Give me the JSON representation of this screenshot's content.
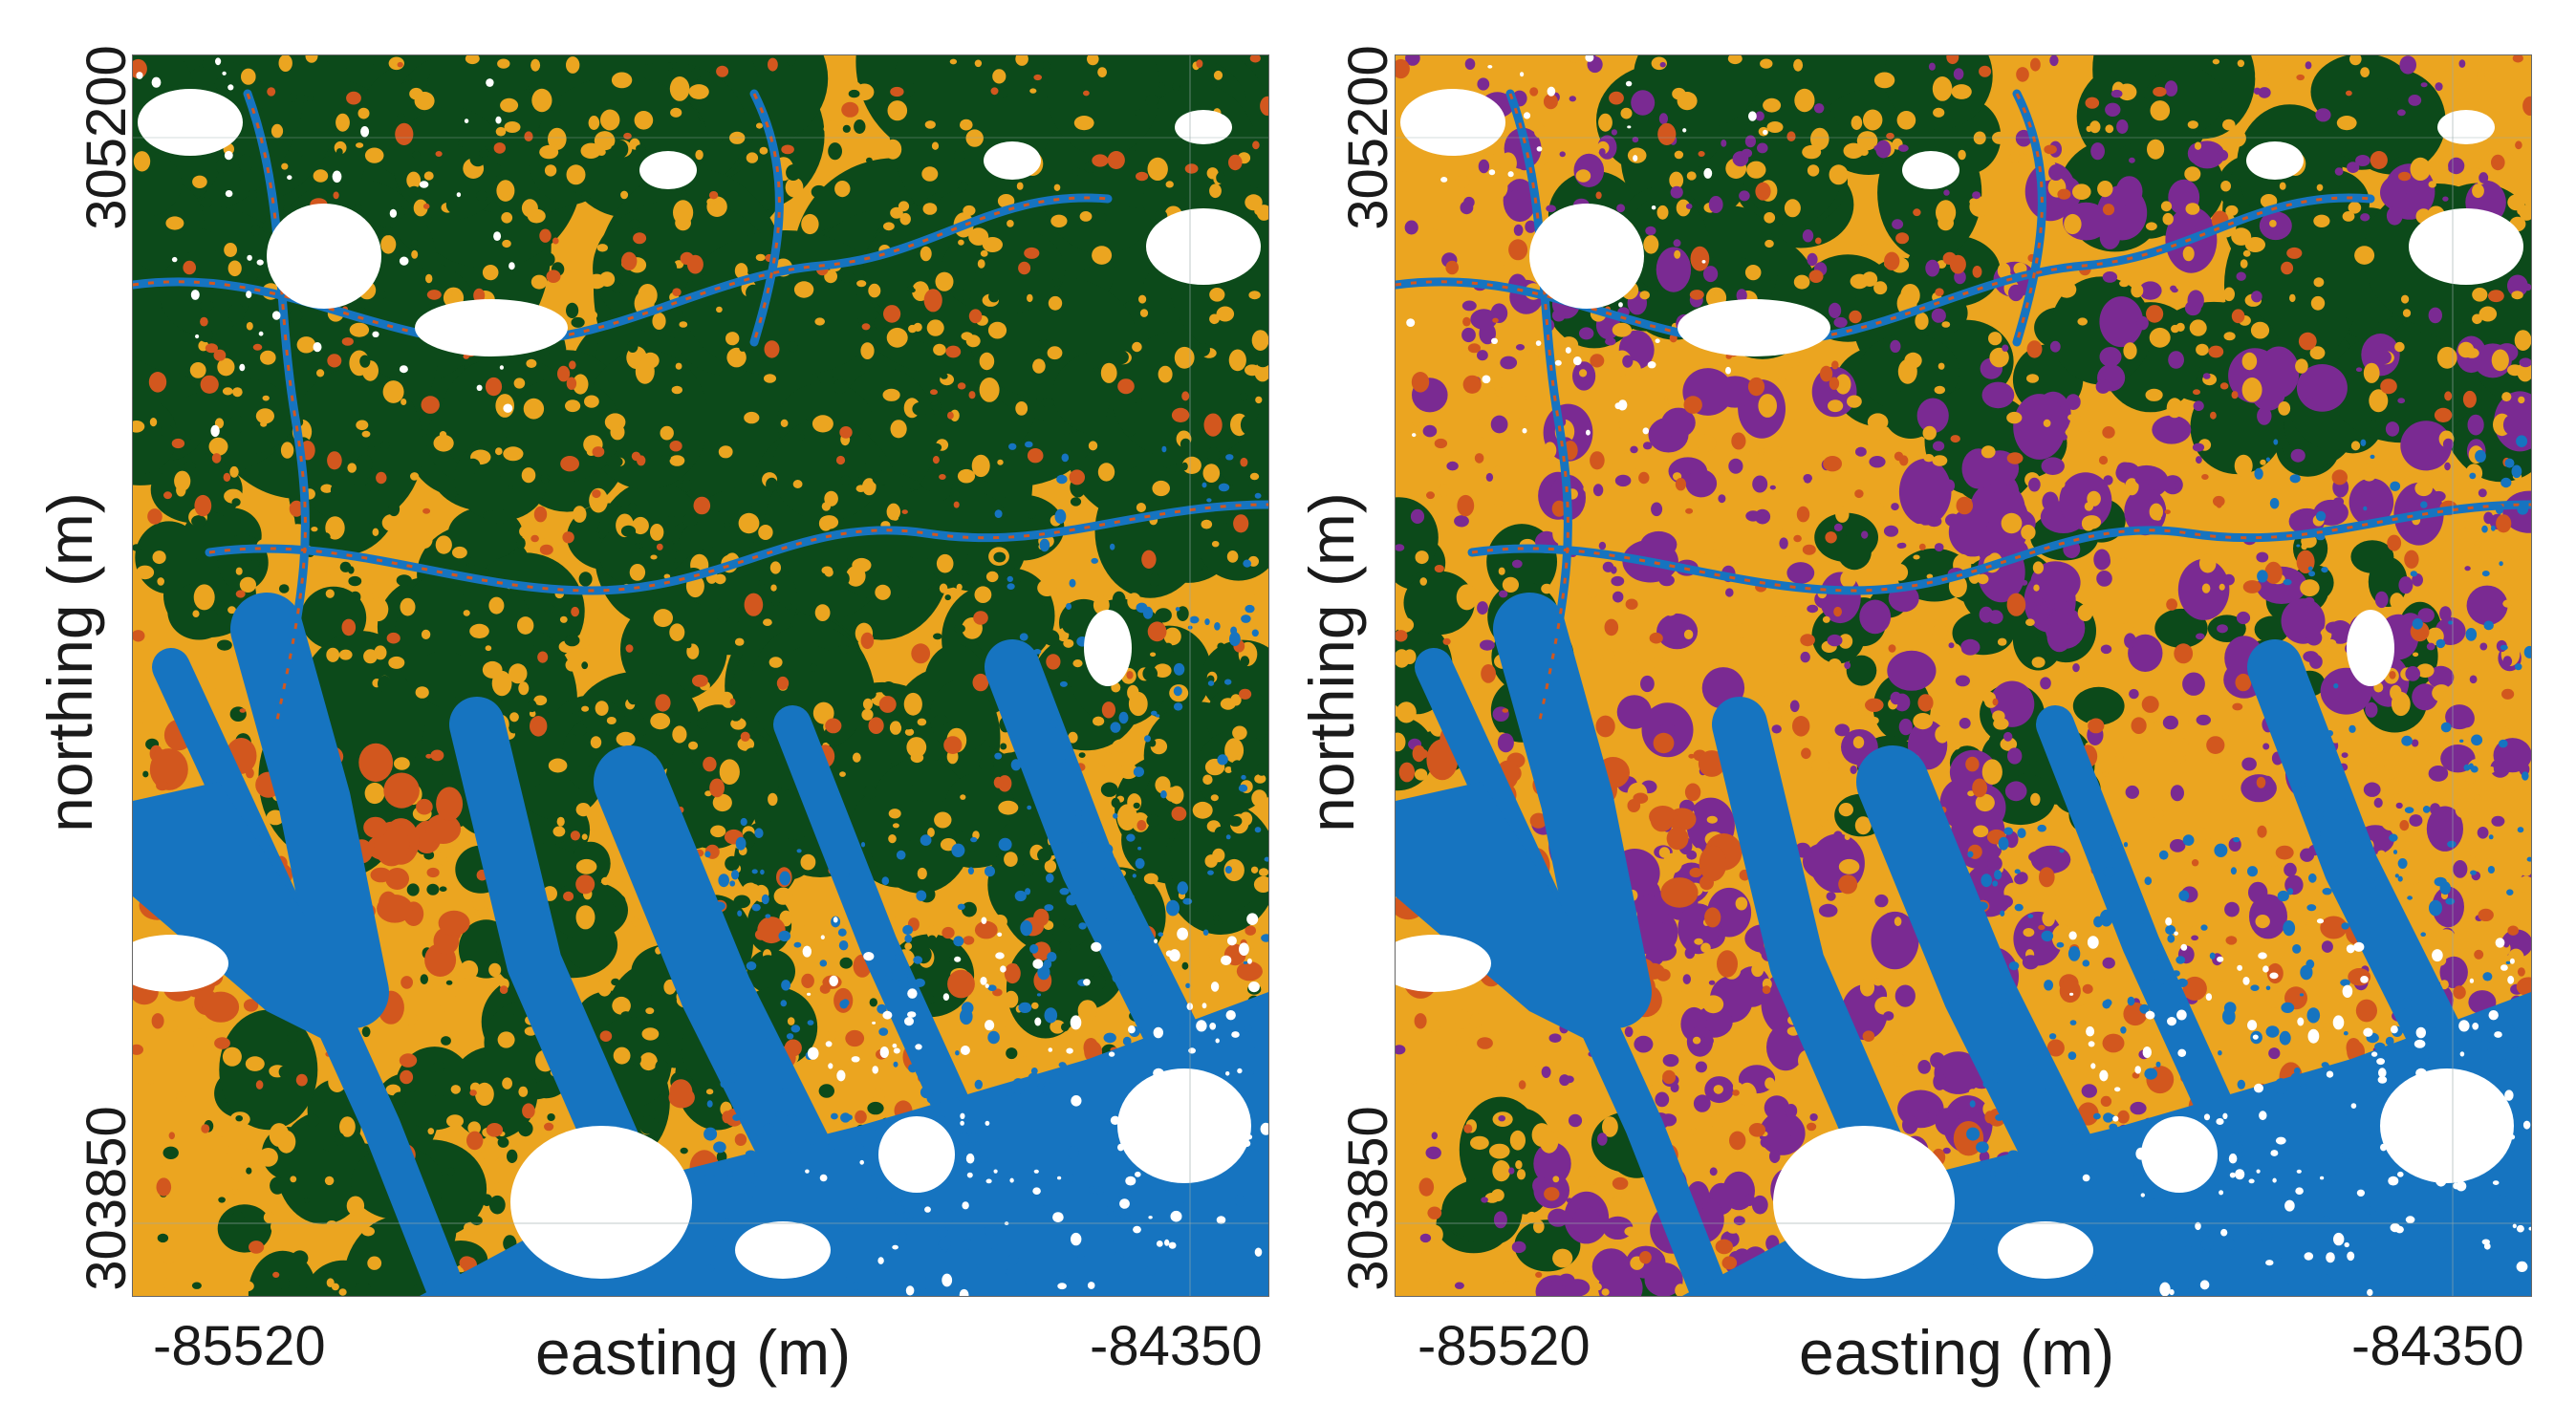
{
  "colors": {
    "forest": "#0c4a1a",
    "shrub": "#eba520",
    "edge": "#d2571e",
    "water": "#1674c0",
    "bare": "#ffffff",
    "purple": "#7a2a92"
  },
  "maps": [
    {
      "xlabel": "easting (m)",
      "ylabel": "northing (m)",
      "x_ticks": [
        "-85520",
        "-84350"
      ],
      "y_ticks": [
        "305200",
        "303850"
      ]
    },
    {
      "xlabel": "easting (m)",
      "ylabel": "northing (m)",
      "x_ticks": [
        "-85520",
        "-84350"
      ],
      "y_ticks": [
        "305200",
        "303850"
      ]
    }
  ]
}
